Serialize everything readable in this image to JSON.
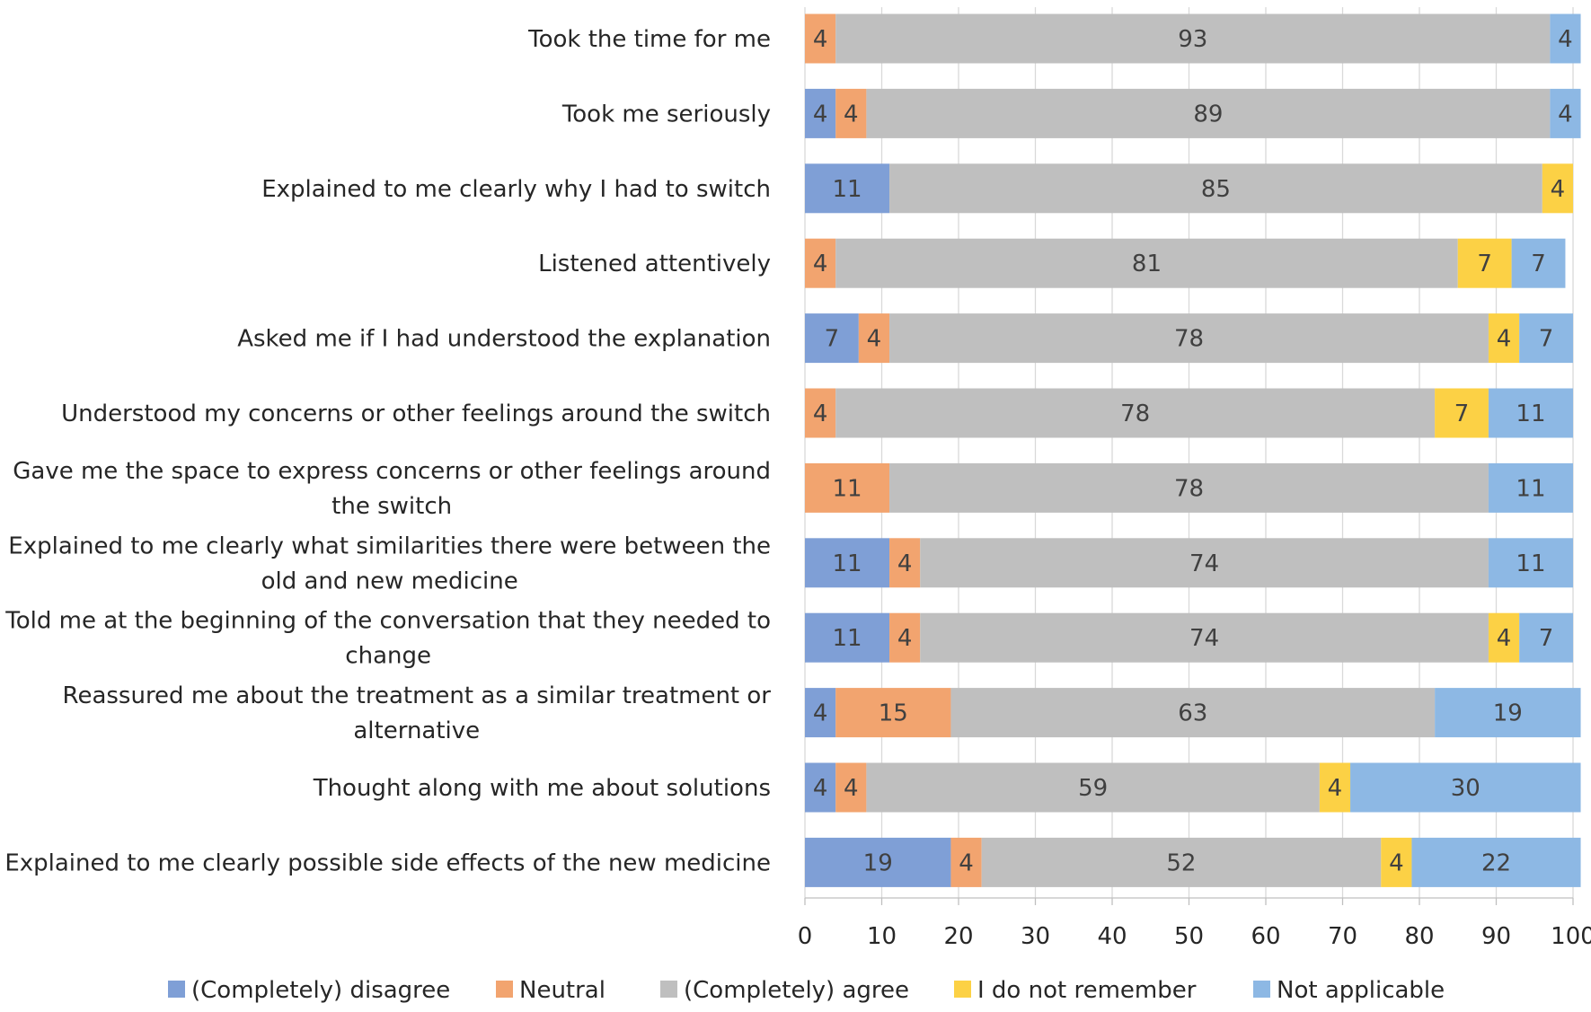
{
  "chart_data": {
    "type": "bar",
    "orientation": "horizontal",
    "stacked": true,
    "categories": [
      [
        "Took the time for me"
      ],
      [
        "Took me seriously"
      ],
      [
        "Explained to me clearly why I had to switch"
      ],
      [
        "Listened attentively"
      ],
      [
        "Asked me if I had understood the explanation"
      ],
      [
        "Understood my concerns or other feelings around the switch"
      ],
      [
        "Gave me the space to express concerns or other feelings around",
        "the switch"
      ],
      [
        "Explained to me clearly what similarities there were between the",
        "old and new medicine"
      ],
      [
        "Told me at the beginning of the conversation that they needed to",
        "change"
      ],
      [
        "Reassured me about the treatment as a similar treatment or",
        "alternative"
      ],
      [
        "Thought along with me about solutions"
      ],
      [
        "Explained to me clearly possible side effects of the new medicine"
      ]
    ],
    "series": [
      {
        "name": "(Completely) disagree",
        "color": "#7f9fd6",
        "values": [
          0,
          4,
          11,
          0,
          7,
          0,
          0,
          11,
          11,
          4,
          4,
          19
        ]
      },
      {
        "name": "Neutral",
        "color": "#f2a46f",
        "values": [
          4,
          4,
          0,
          4,
          4,
          4,
          11,
          4,
          4,
          15,
          4,
          4
        ]
      },
      {
        "name": "(Completely) agree",
        "color": "#bfbfbf",
        "values": [
          93,
          89,
          85,
          81,
          78,
          78,
          78,
          74,
          74,
          63,
          59,
          52
        ]
      },
      {
        "name": "I do not remember",
        "color": "#fcd145",
        "values": [
          0,
          0,
          4,
          7,
          4,
          7,
          0,
          0,
          4,
          0,
          4,
          4
        ]
      },
      {
        "name": "Not applicable",
        "color": "#8db8e4",
        "values": [
          4,
          4,
          0,
          7,
          7,
          11,
          11,
          11,
          7,
          19,
          30,
          22
        ]
      }
    ],
    "xlim": [
      0,
      100
    ],
    "xticks": [
      0,
      10,
      20,
      30,
      40,
      50,
      60,
      70,
      80,
      90,
      100
    ],
    "grid": "vertical",
    "legend": "bottom",
    "title": "",
    "xlabel": "",
    "ylabel": ""
  }
}
